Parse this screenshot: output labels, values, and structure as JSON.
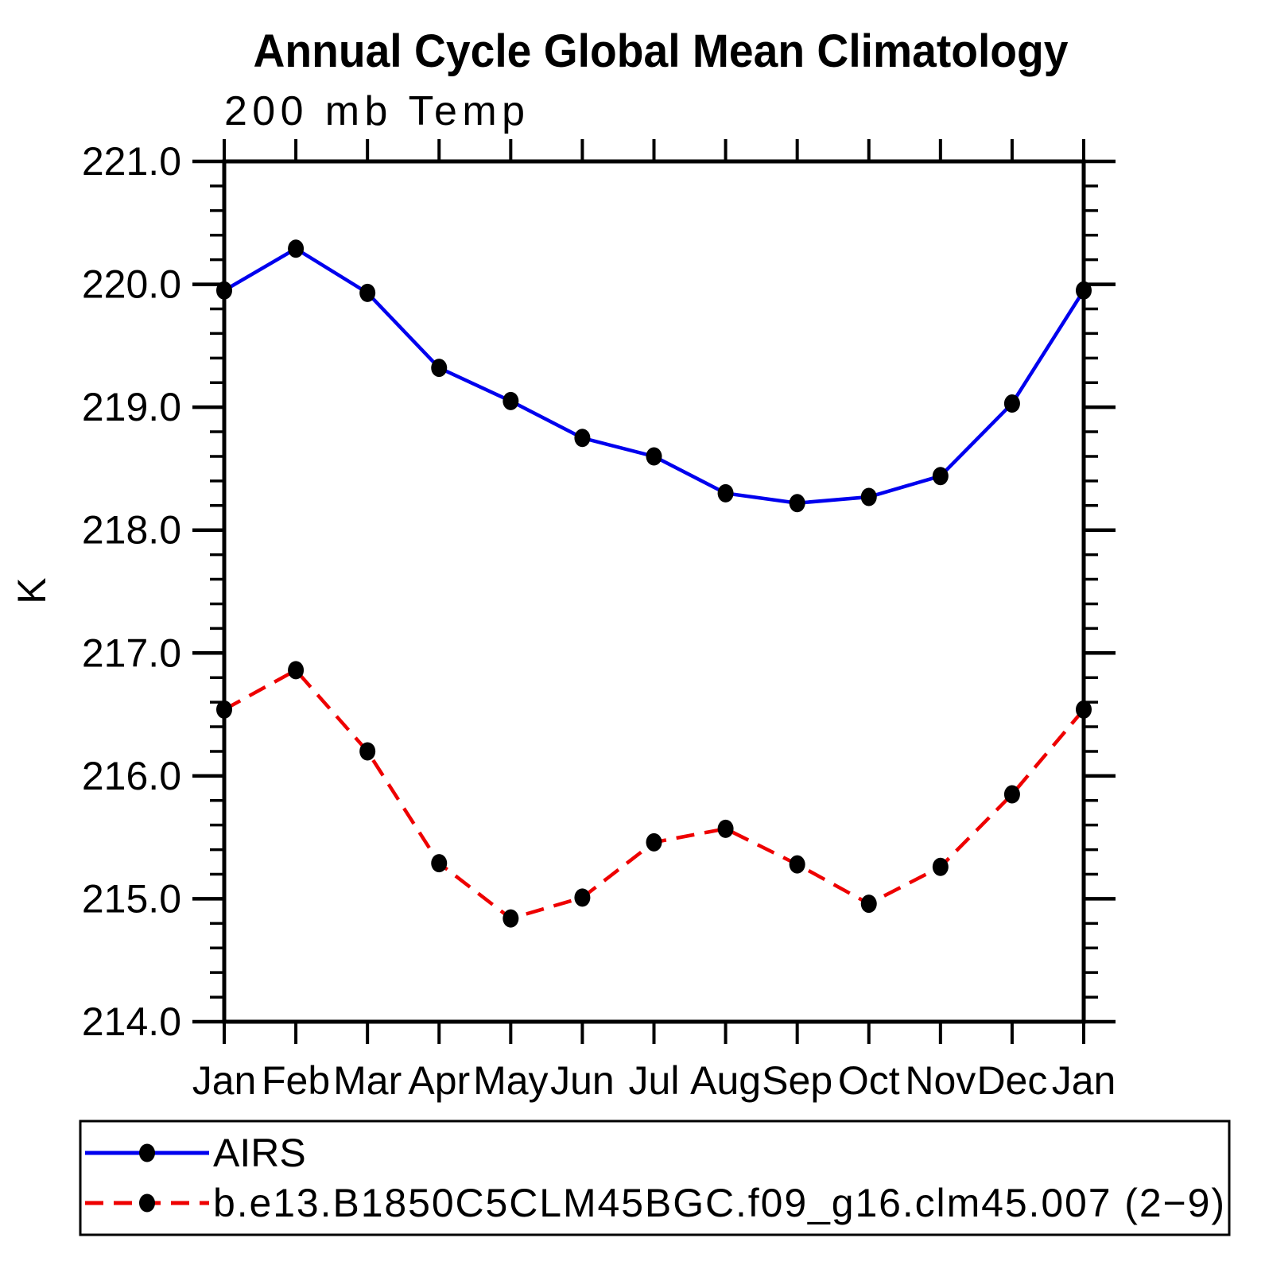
{
  "header": {
    "title": "Annual Cycle Global Mean Climatology",
    "subtitle": "200 mb Temp"
  },
  "colors": {
    "airs": "#0000ee",
    "model": "#ee0000",
    "marker": "#000000",
    "axis": "#000000"
  },
  "legend": {
    "position": "bottom",
    "entries": [
      {
        "label": "AIRS",
        "series": "airs",
        "style": "solid"
      },
      {
        "label": "b.e13.B1850C5CLM45BGC.f09_g16.clm45.007 (2−9)",
        "series": "model",
        "style": "dashed"
      }
    ]
  },
  "chart_data": {
    "type": "line",
    "title": "Annual Cycle Global Mean Climatology",
    "subtitle": "200 mb Temp",
    "xlabel": "",
    "ylabel": "K",
    "x_labels": [
      "Jan",
      "Feb",
      "Mar",
      "Apr",
      "May",
      "Jun",
      "Jul",
      "Aug",
      "Sep",
      "Oct",
      "Nov",
      "Dec",
      "Jan"
    ],
    "ylim": [
      214.0,
      221.0
    ],
    "y_major_step": 1.0,
    "y_minor_step": 0.2,
    "y_tick_labels": [
      "214.0",
      "215.0",
      "216.0",
      "217.0",
      "218.0",
      "219.0",
      "220.0",
      "221.0"
    ],
    "grid": false,
    "legend_position": "bottom",
    "series": [
      {
        "name": "AIRS",
        "color_key": "airs",
        "style": "solid",
        "marker": "filled-circle",
        "values": [
          219.95,
          220.29,
          219.93,
          219.32,
          219.05,
          218.75,
          218.6,
          218.3,
          218.22,
          218.27,
          218.44,
          219.03,
          219.95
        ]
      },
      {
        "name": "b.e13.B1850C5CLM45BGC.f09_g16.clm45.007 (2−9)",
        "color_key": "model",
        "style": "dashed",
        "marker": "filled-circle",
        "values": [
          216.54,
          216.86,
          216.2,
          215.29,
          214.84,
          215.01,
          215.46,
          215.57,
          215.28,
          214.96,
          215.26,
          215.85,
          216.54
        ]
      }
    ]
  }
}
